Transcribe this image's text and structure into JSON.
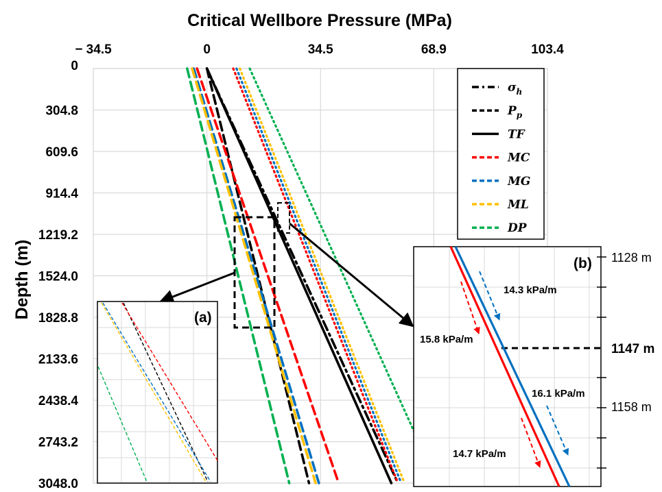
{
  "chart_data": {
    "type": "line",
    "title": "Critical Wellbore Pressure (MPa)",
    "ylabel": "Depth (m)",
    "x_tick_labels": [
      "− 34.5",
      "0",
      "34.5",
      "68.9",
      "103.4"
    ],
    "x_ticks": [
      -34.5,
      0,
      34.5,
      68.9,
      103.4
    ],
    "xlim": [
      -34.5,
      103.4
    ],
    "xaxis_position": "top",
    "y_tick_labels": [
      "0",
      "304.8",
      "609.6",
      "914.4",
      "1219.2",
      "1524.0",
      "1828.8",
      "2133.6",
      "2438.4",
      "2743.2",
      "3048.0"
    ],
    "y_ticks": [
      0,
      304.8,
      609.6,
      914.4,
      1219.2,
      1524.0,
      1828.8,
      2133.6,
      2438.4,
      2743.2,
      3048.0
    ],
    "ylim": [
      0,
      3048
    ],
    "y_inverted": true,
    "grid": true,
    "legend_position": "top-right",
    "series": [
      {
        "name": "σh",
        "color": "#000000",
        "style": "dashdot",
        "x": [
          0,
          58
        ],
        "y": [
          0,
          3048
        ]
      },
      {
        "name": "Pp",
        "color": "#000000",
        "style": "dashed",
        "x": [
          0,
          31
        ],
        "y": [
          0,
          3048
        ]
      },
      {
        "name": "TF",
        "color": "#000000",
        "style": "solid",
        "x": [
          0,
          56
        ],
        "y": [
          0,
          3048
        ]
      },
      {
        "name": "MC",
        "color": "#ff0000",
        "style": "dashed",
        "x": [
          -3,
          40
        ],
        "y": [
          0,
          3048
        ]
      },
      {
        "name": "MG",
        "color": "#0070c0",
        "style": "dashed",
        "x": [
          -4,
          34
        ],
        "y": [
          0,
          3048
        ]
      },
      {
        "name": "ML",
        "color": "#ffc000",
        "style": "dashed",
        "x": [
          -4.5,
          33
        ],
        "y": [
          0,
          3048
        ]
      },
      {
        "name": "DP",
        "color": "#00b050",
        "style": "dashed",
        "x": [
          -6,
          25
        ],
        "y": [
          0,
          3048
        ]
      },
      {
        "name": "",
        "color": "#ff0000",
        "style": "dotted",
        "x": [
          8,
          58
        ],
        "y": [
          0,
          3048
        ]
      },
      {
        "name": "",
        "color": "#0070c0",
        "style": "dotted",
        "x": [
          9,
          59
        ],
        "y": [
          0,
          3048
        ]
      },
      {
        "name": "",
        "color": "#ffc000",
        "style": "dotted",
        "x": [
          10,
          60
        ],
        "y": [
          0,
          3048
        ]
      },
      {
        "name": "",
        "color": "#00b050",
        "style": "dotted",
        "x": [
          13,
          70
        ],
        "y": [
          0,
          3048
        ]
      }
    ],
    "insets": [
      {
        "label": "(a)",
        "series_colors": [
          "#000000",
          "#ff0000",
          "#0070c0",
          "#ffc000",
          "#00b050"
        ]
      },
      {
        "label": "(b)",
        "depth_labels": [
          "1128 m",
          "1147 m",
          "1158 m"
        ],
        "annotations": [
          "14.3 kPa/m",
          "15.8 kPa/m",
          "16.1 kPa/m",
          "14.7 kPa/m"
        ],
        "series": [
          {
            "color": "#ff0000"
          },
          {
            "color": "#0070c0"
          }
        ]
      }
    ]
  }
}
